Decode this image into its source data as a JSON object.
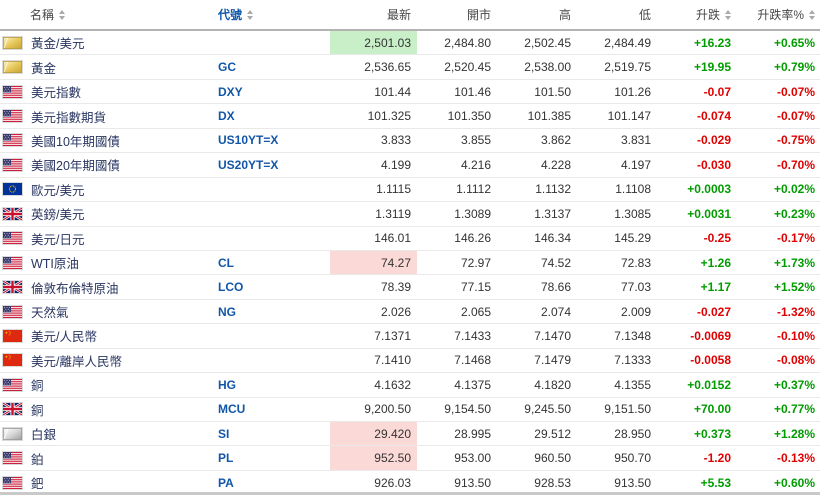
{
  "table": {
    "columns": [
      {
        "label": "名稱",
        "sortable": true
      },
      {
        "label": "代號",
        "sortable": true
      },
      {
        "label": "最新",
        "sortable": false
      },
      {
        "label": "開市",
        "sortable": false
      },
      {
        "label": "高",
        "sortable": false
      },
      {
        "label": "低",
        "sortable": false
      },
      {
        "label": "升跌",
        "sortable": true
      },
      {
        "label": "升跌率%",
        "sortable": true
      }
    ],
    "rows": [
      {
        "icon": "gold-icon",
        "name": "黃金/美元",
        "symbol": "",
        "last": "2,501.03",
        "open": "2,484.80",
        "high": "2,502.45",
        "low": "2,484.49",
        "change": "+16.23",
        "change_pct": "+0.65%",
        "direction": "up",
        "flash": "up"
      },
      {
        "icon": "gold-icon",
        "name": "黃金",
        "symbol": "GC",
        "last": "2,536.65",
        "open": "2,520.45",
        "high": "2,538.00",
        "low": "2,519.75",
        "change": "+19.95",
        "change_pct": "+0.79%",
        "direction": "up",
        "flash": ""
      },
      {
        "icon": "flag-us",
        "name": "美元指數",
        "symbol": "DXY",
        "last": "101.44",
        "open": "101.46",
        "high": "101.50",
        "low": "101.26",
        "change": "-0.07",
        "change_pct": "-0.07%",
        "direction": "down",
        "flash": ""
      },
      {
        "icon": "flag-us",
        "name": "美元指數期貨",
        "symbol": "DX",
        "last": "101.325",
        "open": "101.350",
        "high": "101.385",
        "low": "101.147",
        "change": "-0.074",
        "change_pct": "-0.07%",
        "direction": "down",
        "flash": ""
      },
      {
        "icon": "flag-us",
        "name": "美國10年期國債",
        "symbol": "US10YT=X",
        "last": "3.833",
        "open": "3.855",
        "high": "3.862",
        "low": "3.831",
        "change": "-0.029",
        "change_pct": "-0.75%",
        "direction": "down",
        "flash": ""
      },
      {
        "icon": "flag-us",
        "name": "美國20年期國債",
        "symbol": "US20YT=X",
        "last": "4.199",
        "open": "4.216",
        "high": "4.228",
        "low": "4.197",
        "change": "-0.030",
        "change_pct": "-0.70%",
        "direction": "down",
        "flash": ""
      },
      {
        "icon": "flag-eu",
        "name": "歐元/美元",
        "symbol": "",
        "last": "1.1115",
        "open": "1.1112",
        "high": "1.1132",
        "low": "1.1108",
        "change": "+0.0003",
        "change_pct": "+0.02%",
        "direction": "up",
        "flash": ""
      },
      {
        "icon": "flag-gb",
        "name": "英鎊/美元",
        "symbol": "",
        "last": "1.3119",
        "open": "1.3089",
        "high": "1.3137",
        "low": "1.3085",
        "change": "+0.0031",
        "change_pct": "+0.23%",
        "direction": "up",
        "flash": ""
      },
      {
        "icon": "flag-us",
        "name": "美元/日元",
        "symbol": "",
        "last": "146.01",
        "open": "146.26",
        "high": "146.34",
        "low": "145.29",
        "change": "-0.25",
        "change_pct": "-0.17%",
        "direction": "down",
        "flash": ""
      },
      {
        "icon": "flag-us",
        "name": "WTI原油",
        "symbol": "CL",
        "last": "74.27",
        "open": "72.97",
        "high": "74.52",
        "low": "72.83",
        "change": "+1.26",
        "change_pct": "+1.73%",
        "direction": "up",
        "flash": "down"
      },
      {
        "icon": "flag-gb",
        "name": "倫敦布倫特原油",
        "symbol": "LCO",
        "last": "78.39",
        "open": "77.15",
        "high": "78.66",
        "low": "77.03",
        "change": "+1.17",
        "change_pct": "+1.52%",
        "direction": "up",
        "flash": ""
      },
      {
        "icon": "flag-us",
        "name": "天然氣",
        "symbol": "NG",
        "last": "2.026",
        "open": "2.065",
        "high": "2.074",
        "low": "2.009",
        "change": "-0.027",
        "change_pct": "-1.32%",
        "direction": "down",
        "flash": ""
      },
      {
        "icon": "flag-cn",
        "name": "美元/人民幣",
        "symbol": "",
        "last": "7.1371",
        "open": "7.1433",
        "high": "7.1470",
        "low": "7.1348",
        "change": "-0.0069",
        "change_pct": "-0.10%",
        "direction": "down",
        "flash": ""
      },
      {
        "icon": "flag-cn",
        "name": "美元/離岸人民幣",
        "symbol": "",
        "last": "7.1410",
        "open": "7.1468",
        "high": "7.1479",
        "low": "7.1333",
        "change": "-0.0058",
        "change_pct": "-0.08%",
        "direction": "down",
        "flash": ""
      },
      {
        "icon": "flag-us",
        "name": "銅",
        "symbol": "HG",
        "last": "4.1632",
        "open": "4.1375",
        "high": "4.1820",
        "low": "4.1355",
        "change": "+0.0152",
        "change_pct": "+0.37%",
        "direction": "up",
        "flash": ""
      },
      {
        "icon": "flag-gb",
        "name": "銅",
        "symbol": "MCU",
        "last": "9,200.50",
        "open": "9,154.50",
        "high": "9,245.50",
        "low": "9,151.50",
        "change": "+70.00",
        "change_pct": "+0.77%",
        "direction": "up",
        "flash": ""
      },
      {
        "icon": "silver-icon",
        "name": "白銀",
        "symbol": "SI",
        "last": "29.420",
        "open": "28.995",
        "high": "29.512",
        "low": "28.950",
        "change": "+0.373",
        "change_pct": "+1.28%",
        "direction": "up",
        "flash": "down"
      },
      {
        "icon": "flag-us",
        "name": "鉑",
        "symbol": "PL",
        "last": "952.50",
        "open": "953.00",
        "high": "960.50",
        "low": "950.70",
        "change": "-1.20",
        "change_pct": "-0.13%",
        "direction": "down",
        "flash": "down"
      },
      {
        "icon": "flag-us",
        "name": "鈀",
        "symbol": "PA",
        "last": "926.03",
        "open": "913.50",
        "high": "928.53",
        "low": "913.50",
        "change": "+5.53",
        "change_pct": "+0.60%",
        "direction": "up",
        "flash": ""
      }
    ]
  },
  "colors": {
    "up_text": "#009c00",
    "down_text": "#e00000",
    "up_flash_bg": "#c8efc8",
    "down_flash_bg": "#fbd9d6",
    "symbol_link": "#1156a8",
    "name_text": "#2a3660"
  }
}
